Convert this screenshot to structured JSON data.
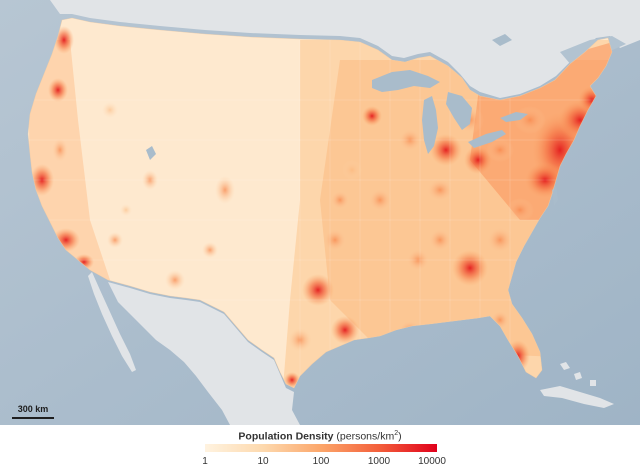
{
  "map": {
    "colors": {
      "ocean": "#a9bccb",
      "land_other": "#e3e6e8",
      "lowest": "#fee9cf",
      "low": "#fdd0a2",
      "mid": "#fba565",
      "high": "#f46a3d",
      "highest": "#e31a1c",
      "lakes": "#a9bccb"
    }
  },
  "scale_bar": {
    "label": "300 km"
  },
  "legend": {
    "title_bold": "Population Density",
    "title_unit": "(persons/km",
    "title_sup": "2",
    "title_close": ")",
    "ticks": [
      "1",
      "10",
      "100",
      "1000",
      "10000"
    ],
    "gradient_colors": [
      "#fff3e0",
      "#fdd9ae",
      "#fca66a",
      "#f35f3b",
      "#e0001b"
    ]
  }
}
